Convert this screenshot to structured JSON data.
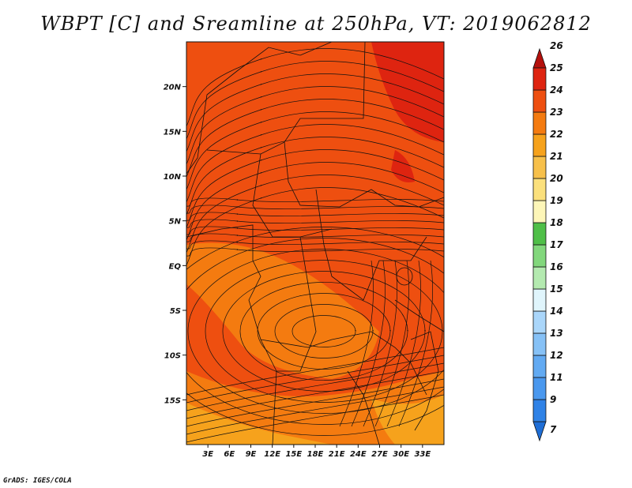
{
  "title": "WBPT [C] and Sreamline at 250hPa, VT: 2019062812",
  "credit": "GrADS: IGES/COLA",
  "map": {
    "lon_range": [
      0,
      36
    ],
    "lat_range": [
      -20,
      25
    ],
    "lon_ticks": [
      "3E",
      "6E",
      "9E",
      "12E",
      "15E",
      "18E",
      "21E",
      "24E",
      "27E",
      "30E",
      "33E"
    ],
    "lat_ticks": [
      "20N",
      "15N",
      "10N",
      "5N",
      "EQ",
      "5S",
      "10S",
      "15S"
    ]
  },
  "colorbar": {
    "labels": [
      "7",
      "9",
      "11",
      "12",
      "13",
      "14",
      "15",
      "16",
      "17",
      "18",
      "19",
      "20",
      "21",
      "22",
      "23",
      "24",
      "25",
      "26"
    ],
    "colors": [
      "#1e6ed6",
      "#2f82e6",
      "#4a98ee",
      "#62aaf2",
      "#86c1f6",
      "#aad6fa",
      "#e0f5fc",
      "#b4eab0",
      "#82d77c",
      "#4fbf48",
      "#fdf6b8",
      "#fbe07c",
      "#f7c04a",
      "#f6a21c",
      "#f47b10",
      "#ee4f10",
      "#de2410",
      "#b4100c"
    ]
  },
  "colors": {
    "field_main": "#ee4f10",
    "field_warm": "#de2410",
    "field_cool": "#f47b10",
    "field_coolest": "#f6a21c",
    "line": "#111111"
  }
}
